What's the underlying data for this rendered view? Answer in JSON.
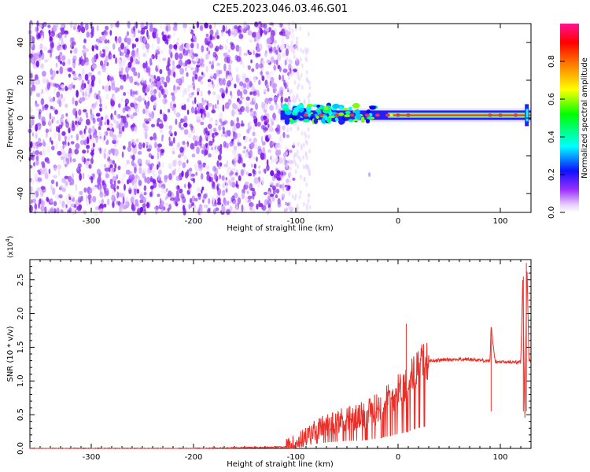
{
  "title": "C2E5.2023.046.03.46.G01",
  "chart_data": [
    {
      "type": "heatmap",
      "xlabel": "Height of straight line (km)",
      "ylabel": "Frequency (Hz)",
      "xlim": [
        -360,
        130
      ],
      "ylim": [
        -50,
        50
      ],
      "xticks": [
        -300,
        -200,
        -100,
        0,
        100
      ],
      "yticks": [
        -40,
        -20,
        0,
        20,
        40
      ],
      "noise_region_x": [
        -360,
        -100
      ],
      "signal_region_x": [
        -115,
        130
      ],
      "signal_frequency": 1.5,
      "colorbar": {
        "label": "Normalized spectral amplitude",
        "range": [
          0.0,
          1.0
        ],
        "ticks": [
          0.0,
          0.2,
          0.4,
          0.6,
          0.8
        ],
        "colors": [
          "#ffffff",
          "#d9b3ff",
          "#8a2be2",
          "#0000ff",
          "#00ffff",
          "#00ff00",
          "#ffff00",
          "#ff8000",
          "#ff0000",
          "#ff1493"
        ]
      },
      "series_color": "#7f00ff"
    },
    {
      "type": "line",
      "xlabel": "Height of straight line (km)",
      "ylabel": "SNR (10 * v/v)",
      "yscale_label": "(x10",
      "yscale_exp": "4",
      "yscale_close": ")",
      "xlim": [
        -360,
        130
      ],
      "ylim": [
        0,
        2.8
      ],
      "xticks": [
        -300,
        -200,
        -100,
        0,
        100
      ],
      "yticks": [
        0.0,
        0.5,
        1.0,
        1.5,
        2.0,
        2.5
      ],
      "color": "#e8302a",
      "series": [
        {
          "x": [
            -360,
            -300,
            -200,
            -110,
            -100,
            -90,
            -80,
            -70,
            -60,
            -50,
            -40,
            -30,
            -20,
            -10,
            0,
            5,
            10,
            15,
            20,
            25,
            30,
            40,
            50,
            60,
            70,
            80,
            90,
            91,
            95,
            100,
            110,
            120,
            122,
            124,
            126,
            128,
            130
          ],
          "y": [
            0.0,
            0.0,
            0.0,
            0.02,
            0.08,
            0.18,
            0.28,
            0.35,
            0.4,
            0.45,
            0.45,
            0.5,
            0.6,
            0.72,
            0.85,
            0.92,
            1.0,
            1.12,
            1.22,
            1.28,
            1.3,
            1.31,
            1.32,
            1.32,
            1.32,
            1.31,
            1.3,
            1.8,
            1.28,
            1.28,
            1.28,
            1.28,
            2.55,
            0.4,
            2.75,
            1.3,
            1.3
          ]
        }
      ],
      "spikes": [
        {
          "x": 8,
          "y": 1.85
        },
        {
          "x": 91,
          "y": 1.8
        },
        {
          "x": 122.5,
          "y": 2.55
        },
        {
          "x": 125.5,
          "y": 2.75
        }
      ]
    }
  ]
}
